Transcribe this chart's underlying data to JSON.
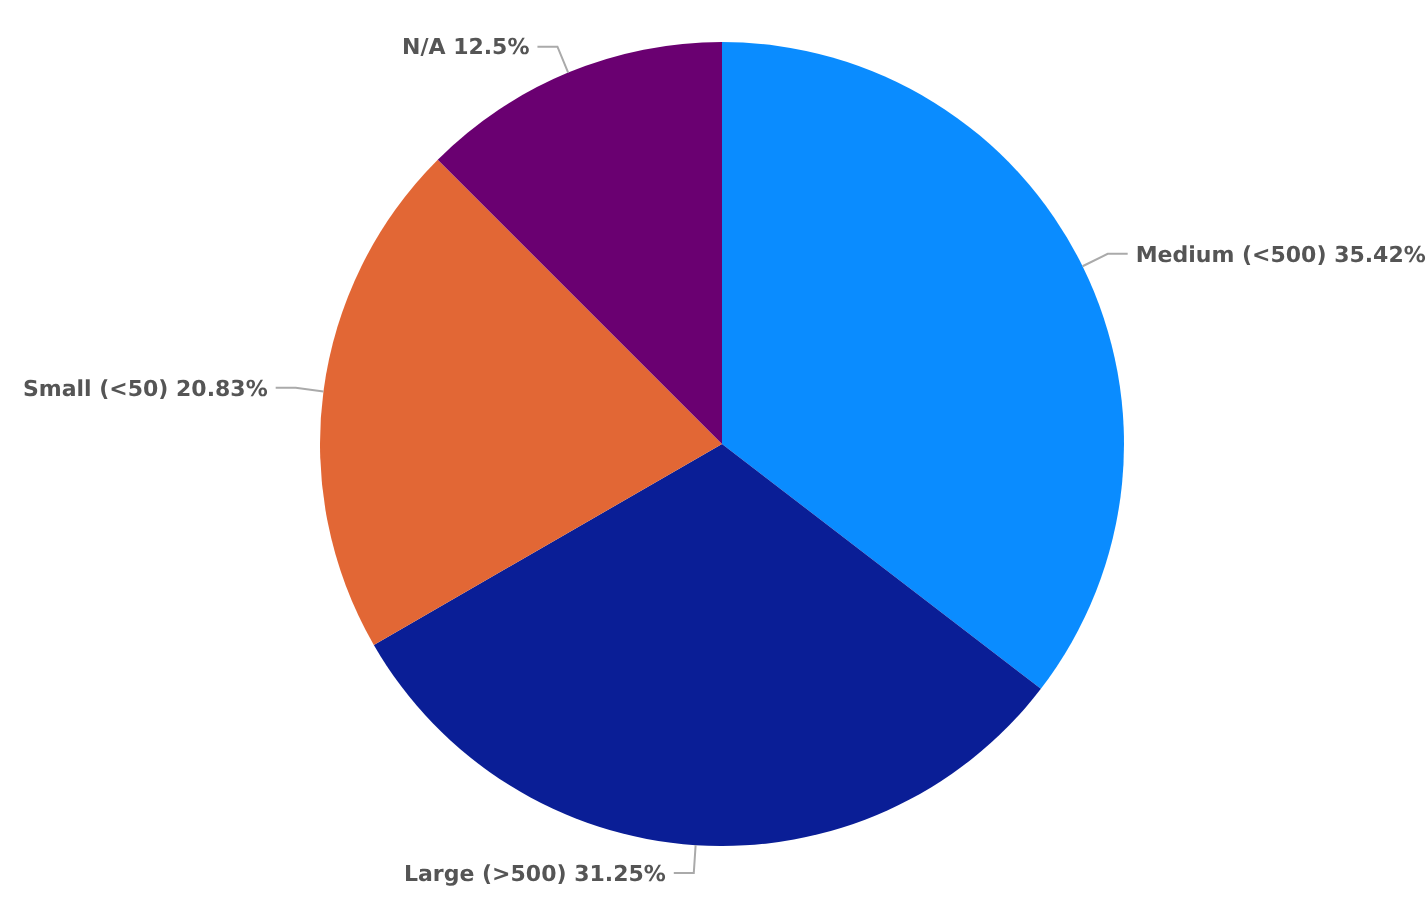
{
  "chart_data": {
    "type": "pie",
    "categories": [
      "Medium (<500)",
      "Large (>500)",
      "Small (<50)",
      "N/A"
    ],
    "values": [
      35.42,
      31.25,
      20.83,
      12.5
    ],
    "value_labels": [
      "35.42%",
      "31.25%",
      "20.83%",
      "12.5%"
    ],
    "colors": [
      "#0a8cff",
      "#0a1e96",
      "#e26735",
      "#6a0071"
    ],
    "legend": false
  }
}
